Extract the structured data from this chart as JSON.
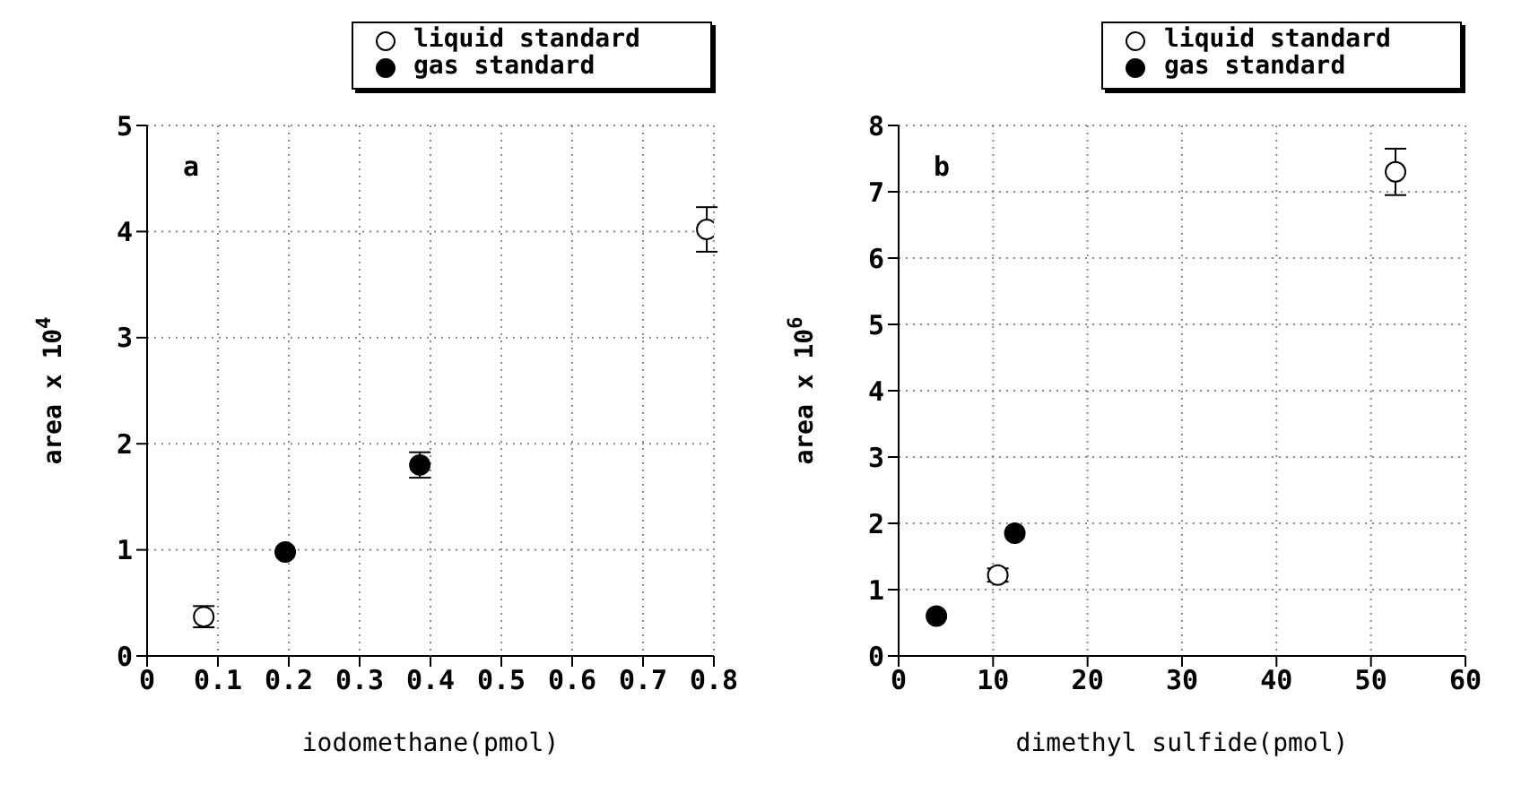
{
  "chart_data": [
    {
      "type": "scatter",
      "xlabel": "iodomethane(pmol)",
      "ylabel": "area x 10$^{4}$",
      "annotations": [
        "a"
      ],
      "xlim": [
        0,
        0.8
      ],
      "xticks": [
        0,
        0.1,
        0.2,
        0.3,
        0.4,
        0.5,
        0.6,
        0.7,
        0.8
      ],
      "ylim": [
        0,
        5
      ],
      "yticks": [
        0,
        1,
        2,
        3,
        4,
        5
      ],
      "grid": true,
      "legend": "top right",
      "marker": "circle",
      "series": [
        {
          "name": "liquid standard",
          "color": "#ffffff",
          "x": [
            0.08,
            0.79
          ],
          "values": [
            0.37,
            4.02
          ],
          "errors": [
            0.1,
            0.21
          ]
        },
        {
          "name": "gas standard",
          "color": "#000000",
          "x": [
            0.195,
            0.385
          ],
          "values": [
            0.98,
            1.8
          ],
          "errors": [
            null,
            0.12
          ]
        }
      ]
    },
    {
      "type": "scatter",
      "xlabel": "dimethyl sulfide(pmol)",
      "ylabel": "area x 10$^{6}$",
      "annotations": [
        "b"
      ],
      "xlim": [
        0,
        60
      ],
      "xticks": [
        0,
        10,
        20,
        30,
        40,
        50,
        60
      ],
      "ylim": [
        0,
        8
      ],
      "yticks": [
        0,
        1,
        2,
        3,
        4,
        5,
        6,
        7,
        8
      ],
      "grid": true,
      "legend": "top right",
      "marker": "circle",
      "series": [
        {
          "name": "liquid standard",
          "color": "#ffffff",
          "x": [
            10.5,
            52.6
          ],
          "values": [
            1.22,
            7.3
          ],
          "errors": [
            0.1,
            0.35
          ]
        },
        {
          "name": "gas standard",
          "color": "#000000",
          "x": [
            4,
            12.3
          ],
          "values": [
            0.6,
            1.85
          ],
          "errors": [
            null,
            null
          ]
        }
      ]
    }
  ]
}
